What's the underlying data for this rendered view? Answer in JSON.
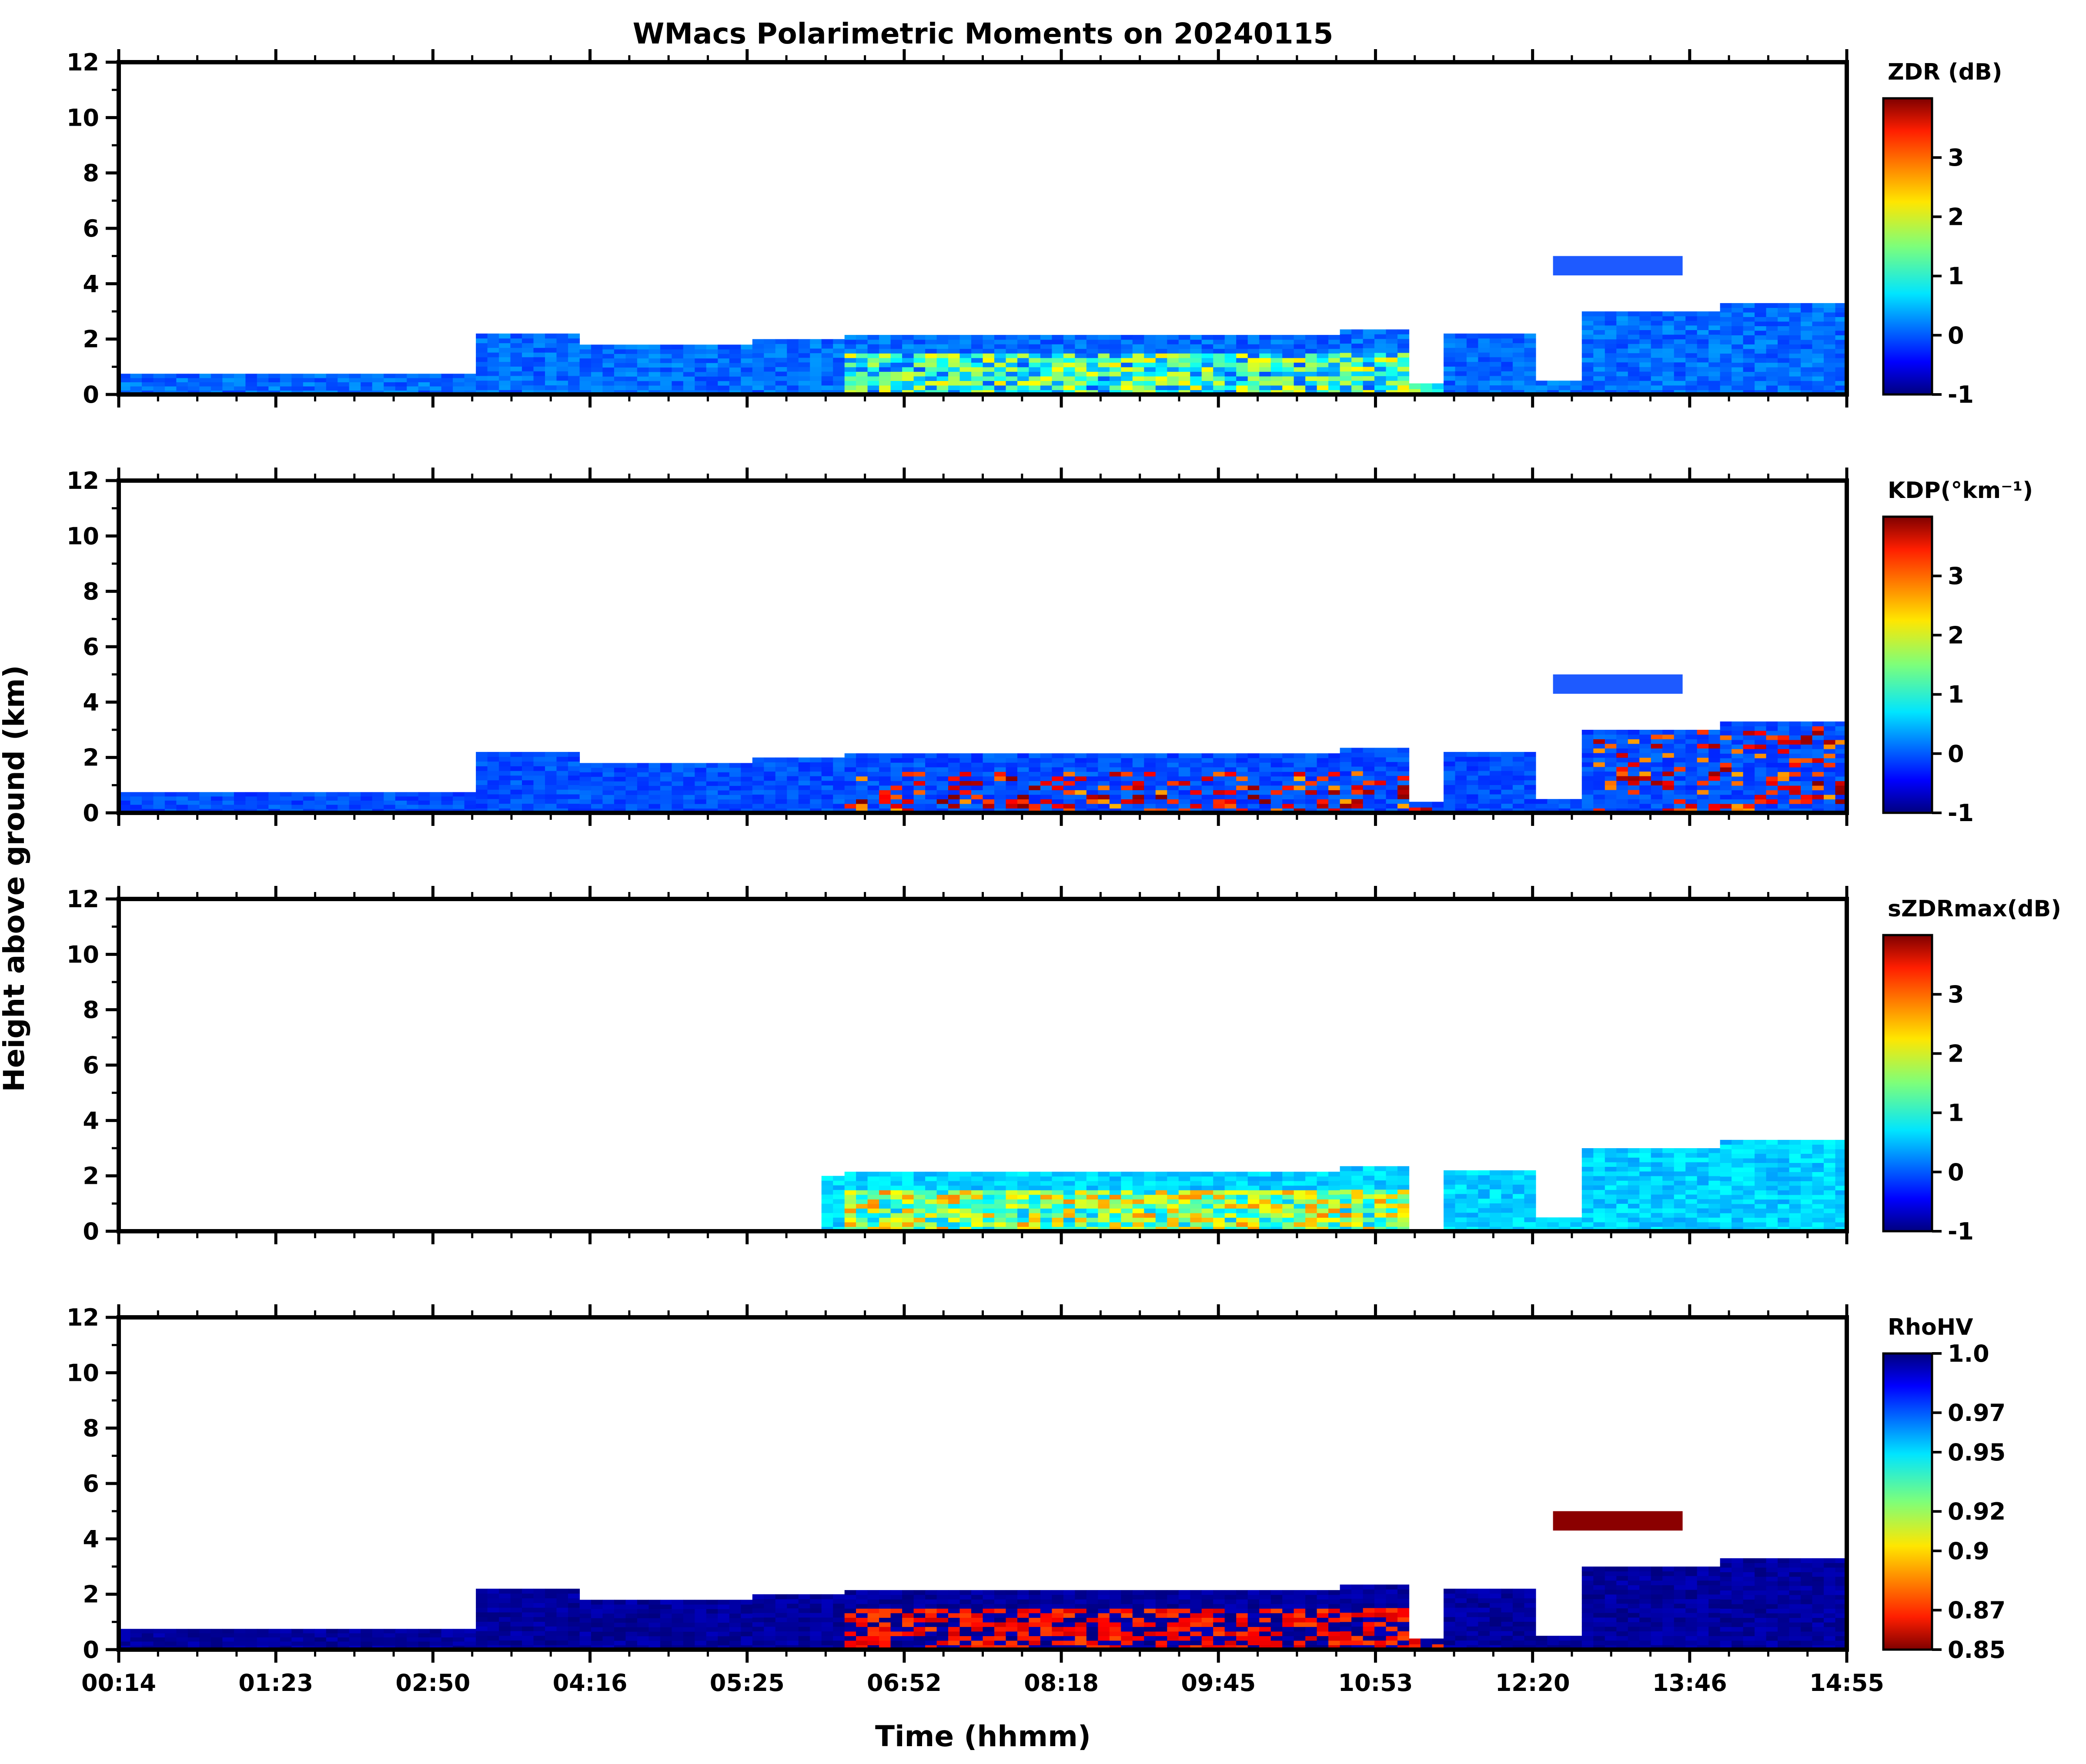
{
  "chart_data": {
    "type": "heatmap",
    "title": "WMacs Polarimetric Moments on 20240115",
    "xlabel": "Time (hhmm)",
    "ylabel": "Height above ground (km)",
    "x_tick_labels": [
      "00:14",
      "01:23",
      "02:50",
      "04:16",
      "05:25",
      "06:52",
      "08:18",
      "09:45",
      "10:53",
      "12:20",
      "13:46",
      "14:55"
    ],
    "ylim": [
      0,
      12
    ],
    "y_ticks": [
      0,
      2,
      4,
      6,
      8,
      10,
      12
    ],
    "panels": [
      {
        "name": "ZDR",
        "colorbar_label": "ZDR (dB)",
        "colormap": "jet",
        "clim": [
          -1,
          4
        ],
        "colorbar_ticks": [
          "-1",
          "0",
          "1",
          "2",
          "3"
        ],
        "colorbar_tick_values": [
          -1,
          0,
          1,
          2,
          3
        ]
      },
      {
        "name": "KDP",
        "colorbar_label": "KDP(°km⁻¹)",
        "colormap": "jet",
        "clim": [
          -1,
          4
        ],
        "colorbar_ticks": [
          "-1",
          "0",
          "1",
          "2",
          "3"
        ],
        "colorbar_tick_values": [
          -1,
          0,
          1,
          2,
          3
        ]
      },
      {
        "name": "sZDRmax",
        "colorbar_label": "sZDRmax(dB)",
        "colormap": "jet",
        "clim": [
          -1,
          4
        ],
        "colorbar_ticks": [
          "-1",
          "0",
          "1",
          "2",
          "3"
        ],
        "colorbar_tick_values": [
          -1,
          0,
          1,
          2,
          3
        ]
      },
      {
        "name": "RhoHV",
        "colorbar_label": "RhoHV",
        "colormap": "jet_r",
        "clim": [
          0.85,
          1.0
        ],
        "colorbar_ticks": [
          "0.85",
          "0.87",
          "0.9",
          "0.92",
          "0.95",
          "0.97",
          "1.0"
        ],
        "colorbar_tick_values": [
          0.85,
          0.87,
          0.9,
          0.92,
          0.95,
          0.97,
          1.0
        ]
      }
    ]
  }
}
